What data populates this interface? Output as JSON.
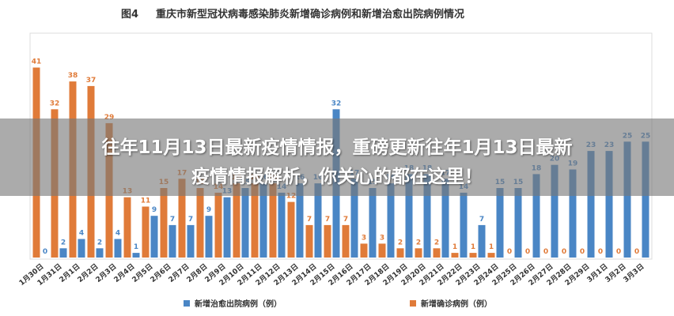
{
  "chart_data": {
    "type": "bar",
    "title_prefix": "图4",
    "title": "重庆市新型冠状病毒感染肺炎新增确诊病例和新增治愈出院病例情况",
    "categories": [
      "1月30日",
      "1月31日",
      "2月1日",
      "2月2日",
      "2月3日",
      "2月4日",
      "2月5日",
      "2月6日",
      "2月7日",
      "2月8日",
      "2月9日",
      "2月10日",
      "2月11日",
      "2月12日",
      "2月13日",
      "2月14日",
      "2月15日",
      "2月16日",
      "2月17日",
      "2月18日",
      "2月19日",
      "2月20日",
      "2月21日",
      "2月22日",
      "2月23日",
      "2月24日",
      "2月25日",
      "2月26日",
      "2月27日",
      "2月28日",
      "2月29日",
      "3月1日",
      "3月2日",
      "3月3日"
    ],
    "series": [
      {
        "name": "新增治愈出院病例（例）",
        "color": "#4a86c5",
        "values": [
          0,
          2,
          4,
          2,
          4,
          1,
          9,
          7,
          7,
          9,
          13,
          15,
          16,
          14,
          16,
          16,
          32,
          17,
          15,
          16,
          18,
          18,
          17,
          14,
          7,
          15,
          15,
          18,
          20,
          19,
          23,
          23,
          25,
          25
        ]
      },
      {
        "name": "新增确诊病例（例）",
        "color": "#e07b39",
        "values": [
          41,
          32,
          38,
          37,
          29,
          13,
          11,
          15,
          17,
          15,
          14,
          16,
          16,
          16,
          12,
          7,
          7,
          7,
          3,
          3,
          2,
          2,
          2,
          1,
          1,
          1,
          0,
          0,
          0,
          0,
          0,
          0,
          0,
          0
        ]
      }
    ],
    "ylim": [
      0,
      45
    ],
    "legend_position": "bottom"
  },
  "banner": {
    "line1": "往年11月13日最新疫情情报，重磅更新往年1月13日最新",
    "line2": "疫情情报解析，你关心的都在这里！"
  }
}
